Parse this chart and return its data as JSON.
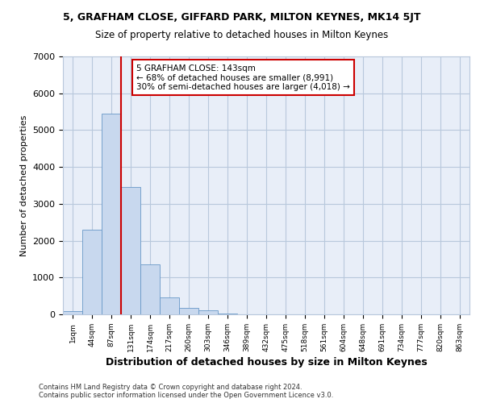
{
  "title1": "5, GRAFHAM CLOSE, GIFFARD PARK, MILTON KEYNES, MK14 5JT",
  "title2": "Size of property relative to detached houses in Milton Keynes",
  "xlabel": "Distribution of detached houses by size in Milton Keynes",
  "ylabel": "Number of detached properties",
  "footnote": "Contains HM Land Registry data © Crown copyright and database right 2024.\nContains public sector information licensed under the Open Government Licence v3.0.",
  "bar_color": "#c8d8ee",
  "bar_edge_color": "#6898c8",
  "bin_labels": [
    "1sqm",
    "44sqm",
    "87sqm",
    "131sqm",
    "174sqm",
    "217sqm",
    "260sqm",
    "303sqm",
    "346sqm",
    "389sqm",
    "432sqm",
    "475sqm",
    "518sqm",
    "561sqm",
    "604sqm",
    "648sqm",
    "691sqm",
    "734sqm",
    "777sqm",
    "820sqm",
    "863sqm"
  ],
  "bar_heights": [
    80,
    2300,
    5450,
    3450,
    1350,
    460,
    175,
    100,
    30,
    10,
    3,
    1,
    0,
    0,
    0,
    0,
    0,
    0,
    0,
    0,
    0
  ],
  "red_line_bin_index": 3,
  "ylim": [
    0,
    7000
  ],
  "yticks": [
    0,
    1000,
    2000,
    3000,
    4000,
    5000,
    6000,
    7000
  ],
  "annotation_text": "5 GRAFHAM CLOSE: 143sqm\n← 68% of detached houses are smaller (8,991)\n30% of semi-detached houses are larger (4,018) →",
  "annotation_color": "#cc0000",
  "background_color": "#e8eef8",
  "grid_color": "#b8c8dc",
  "title_fontsize": 9,
  "subtitle_fontsize": 8.5,
  "ylabel_fontsize": 8,
  "xlabel_fontsize": 9
}
